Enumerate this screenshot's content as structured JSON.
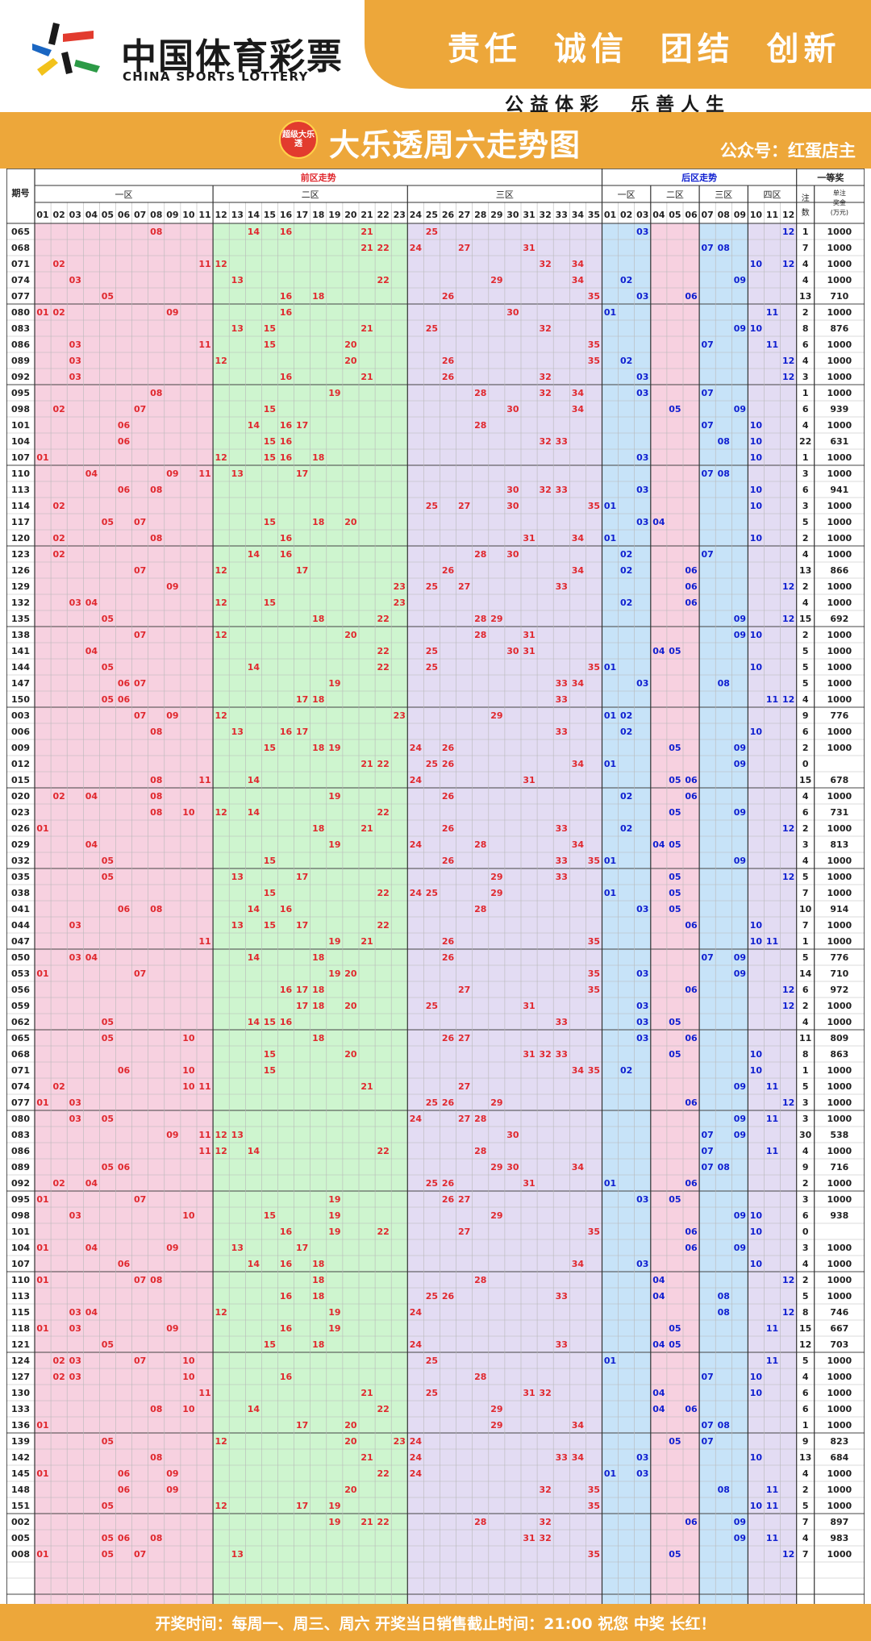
{
  "brand": {
    "name_cn": "中国体育彩票",
    "name_en": "CHINA SPORTS LOTTERY",
    "slogan": "责任  诚信  团结  创新",
    "tagline": "公益体彩  乐善人生"
  },
  "title": {
    "badge": "超级大乐透",
    "text": "大乐透周六走势图",
    "subtitle": "公众号：红蛋店主"
  },
  "header": {
    "period_label": "期号",
    "front_label": "前区走势",
    "back_label": "后区走势",
    "prize_label": "一等奖",
    "front_zones": [
      "一区",
      "二区",
      "三区"
    ],
    "back_zones": [
      "一区",
      "二区",
      "三区",
      "四区"
    ],
    "count_label": "注数",
    "amount_label": "单注奖金(万元)"
  },
  "footer": "开奖时间：每周一、周三、周六  开奖当日销售截止时间：21:00  祝您 中奖 长红！",
  "colors": {
    "front_zone1": "#f7d1e0",
    "front_zone2": "#cef5cf",
    "front_zone3": "#e3dcf3",
    "back_zone1": "#c7e3f8",
    "back_zone2": "#f7d1e0",
    "back_zone3": "#c7e3f8",
    "back_zone4": "#e3dcf3",
    "front_number": "#e0282e",
    "back_number": "#1020d0",
    "orange": "#eda73a"
  },
  "draws": [
    {
      "p": "065",
      "f": [
        8,
        14,
        16,
        21,
        25
      ],
      "b": [
        3,
        12
      ],
      "n": "1",
      "a": "1000"
    },
    {
      "p": "068",
      "f": [
        21,
        22,
        24,
        27,
        31
      ],
      "b": [
        7,
        8
      ],
      "n": "7",
      "a": "1000"
    },
    {
      "p": "071",
      "f": [
        2,
        11,
        12,
        32,
        34
      ],
      "b": [
        10,
        12
      ],
      "n": "4",
      "a": "1000"
    },
    {
      "p": "074",
      "f": [
        3,
        13,
        22,
        29,
        34
      ],
      "b": [
        2,
        9
      ],
      "n": "4",
      "a": "1000"
    },
    {
      "p": "077",
      "f": [
        5,
        16,
        18,
        26,
        35
      ],
      "b": [
        3,
        6
      ],
      "n": "13",
      "a": "710"
    },
    {
      "p": "080",
      "f": [
        1,
        2,
        9,
        16,
        30
      ],
      "b": [
        1,
        11
      ],
      "n": "2",
      "a": "1000"
    },
    {
      "p": "083",
      "f": [
        13,
        15,
        21,
        25,
        32
      ],
      "b": [
        9,
        10
      ],
      "n": "8",
      "a": "876"
    },
    {
      "p": "086",
      "f": [
        3,
        11,
        15,
        20,
        35
      ],
      "b": [
        7,
        11
      ],
      "n": "6",
      "a": "1000"
    },
    {
      "p": "089",
      "f": [
        3,
        12,
        20,
        26,
        35
      ],
      "b": [
        2,
        12
      ],
      "n": "4",
      "a": "1000"
    },
    {
      "p": "092",
      "f": [
        3,
        16,
        21,
        26,
        32
      ],
      "b": [
        3,
        12
      ],
      "n": "3",
      "a": "1000"
    },
    {
      "p": "095",
      "f": [
        8,
        19,
        28,
        32,
        34
      ],
      "b": [
        3,
        7
      ],
      "n": "1",
      "a": "1000"
    },
    {
      "p": "098",
      "f": [
        2,
        7,
        15,
        30,
        34
      ],
      "b": [
        5,
        9
      ],
      "n": "6",
      "a": "939"
    },
    {
      "p": "101",
      "f": [
        6,
        14,
        16,
        17,
        28
      ],
      "b": [
        7,
        10
      ],
      "n": "4",
      "a": "1000"
    },
    {
      "p": "104",
      "f": [
        6,
        15,
        16,
        32,
        33
      ],
      "b": [
        8,
        10
      ],
      "n": "22",
      "a": "631"
    },
    {
      "p": "107",
      "f": [
        1,
        12,
        15,
        16,
        18
      ],
      "b": [
        3,
        10
      ],
      "n": "1",
      "a": "1000"
    },
    {
      "p": "110",
      "f": [
        4,
        9,
        11,
        13,
        17
      ],
      "b": [
        7,
        8
      ],
      "n": "3",
      "a": "1000"
    },
    {
      "p": "113",
      "f": [
        6,
        8,
        30,
        32,
        33
      ],
      "b": [
        3,
        10
      ],
      "n": "6",
      "a": "941"
    },
    {
      "p": "114",
      "f": [
        2,
        25,
        27,
        30,
        35
      ],
      "b": [
        1,
        10
      ],
      "n": "3",
      "a": "1000"
    },
    {
      "p": "117",
      "f": [
        5,
        7,
        15,
        18,
        20
      ],
      "b": [
        3,
        4
      ],
      "n": "5",
      "a": "1000"
    },
    {
      "p": "120",
      "f": [
        2,
        8,
        16,
        31,
        34
      ],
      "b": [
        1,
        10
      ],
      "n": "2",
      "a": "1000"
    },
    {
      "p": "123",
      "f": [
        2,
        14,
        16,
        28,
        30
      ],
      "b": [
        2,
        7
      ],
      "n": "4",
      "a": "1000"
    },
    {
      "p": "126",
      "f": [
        7,
        12,
        17,
        26,
        34
      ],
      "b": [
        2,
        6
      ],
      "n": "13",
      "a": "866"
    },
    {
      "p": "129",
      "f": [
        9,
        23,
        25,
        27,
        33
      ],
      "b": [
        6,
        12
      ],
      "n": "2",
      "a": "1000"
    },
    {
      "p": "132",
      "f": [
        3,
        4,
        12,
        15,
        23
      ],
      "b": [
        2,
        6
      ],
      "n": "4",
      "a": "1000"
    },
    {
      "p": "135",
      "f": [
        5,
        18,
        22,
        28,
        29
      ],
      "b": [
        9,
        12
      ],
      "n": "15",
      "a": "692"
    },
    {
      "p": "138",
      "f": [
        7,
        12,
        20,
        28,
        31
      ],
      "b": [
        9,
        10
      ],
      "n": "2",
      "a": "1000"
    },
    {
      "p": "141",
      "f": [
        4,
        22,
        25,
        30,
        31
      ],
      "b": [
        4,
        5
      ],
      "n": "5",
      "a": "1000"
    },
    {
      "p": "144",
      "f": [
        5,
        14,
        22,
        25,
        35
      ],
      "b": [
        1,
        10
      ],
      "n": "5",
      "a": "1000"
    },
    {
      "p": "147",
      "f": [
        6,
        7,
        19,
        33,
        34
      ],
      "b": [
        3,
        8
      ],
      "n": "5",
      "a": "1000"
    },
    {
      "p": "150",
      "f": [
        5,
        6,
        17,
        18,
        33
      ],
      "b": [
        11,
        12
      ],
      "n": "4",
      "a": "1000"
    },
    {
      "p": "003",
      "f": [
        7,
        9,
        12,
        23,
        29
      ],
      "b": [
        1,
        2
      ],
      "n": "9",
      "a": "776"
    },
    {
      "p": "006",
      "f": [
        8,
        13,
        16,
        17,
        33
      ],
      "b": [
        2,
        10
      ],
      "n": "6",
      "a": "1000"
    },
    {
      "p": "009",
      "f": [
        15,
        18,
        19,
        24,
        26
      ],
      "b": [
        5,
        9
      ],
      "n": "2",
      "a": "1000"
    },
    {
      "p": "012",
      "f": [
        21,
        22,
        25,
        26,
        34
      ],
      "b": [
        1,
        9
      ],
      "n": "0",
      "a": ""
    },
    {
      "p": "015",
      "f": [
        8,
        11,
        14,
        24,
        31
      ],
      "b": [
        5,
        6
      ],
      "n": "15",
      "a": "678"
    },
    {
      "p": "020",
      "f": [
        2,
        4,
        8,
        19,
        26
      ],
      "b": [
        2,
        6
      ],
      "n": "4",
      "a": "1000"
    },
    {
      "p": "023",
      "f": [
        8,
        10,
        12,
        14,
        22
      ],
      "b": [
        5,
        9
      ],
      "n": "6",
      "a": "731"
    },
    {
      "p": "026",
      "f": [
        1,
        18,
        21,
        26,
        33
      ],
      "b": [
        2,
        12
      ],
      "n": "2",
      "a": "1000"
    },
    {
      "p": "029",
      "f": [
        4,
        19,
        24,
        28,
        34
      ],
      "b": [
        4,
        5
      ],
      "n": "3",
      "a": "813"
    },
    {
      "p": "032",
      "f": [
        5,
        15,
        26,
        33,
        35
      ],
      "b": [
        1,
        9
      ],
      "n": "4",
      "a": "1000"
    },
    {
      "p": "035",
      "f": [
        5,
        13,
        17,
        29,
        33
      ],
      "b": [
        5,
        12
      ],
      "n": "5",
      "a": "1000"
    },
    {
      "p": "038",
      "f": [
        15,
        22,
        24,
        25,
        29
      ],
      "b": [
        1,
        5
      ],
      "n": "7",
      "a": "1000"
    },
    {
      "p": "041",
      "f": [
        6,
        8,
        14,
        16,
        28
      ],
      "b": [
        3,
        5
      ],
      "n": "10",
      "a": "914"
    },
    {
      "p": "044",
      "f": [
        3,
        13,
        15,
        17,
        22
      ],
      "b": [
        6,
        10
      ],
      "n": "7",
      "a": "1000"
    },
    {
      "p": "047",
      "f": [
        11,
        19,
        21,
        26,
        35
      ],
      "b": [
        10,
        11
      ],
      "n": "1",
      "a": "1000"
    },
    {
      "p": "050",
      "f": [
        3,
        4,
        14,
        18,
        26
      ],
      "b": [
        7,
        9
      ],
      "n": "5",
      "a": "776"
    },
    {
      "p": "053",
      "f": [
        1,
        7,
        19,
        20,
        35
      ],
      "b": [
        3,
        9
      ],
      "n": "14",
      "a": "710"
    },
    {
      "p": "056",
      "f": [
        16,
        17,
        18,
        27,
        35
      ],
      "b": [
        6,
        12
      ],
      "n": "6",
      "a": "972"
    },
    {
      "p": "059",
      "f": [
        17,
        18,
        20,
        25,
        31
      ],
      "b": [
        3,
        12
      ],
      "n": "2",
      "a": "1000"
    },
    {
      "p": "062",
      "f": [
        5,
        14,
        15,
        16,
        33
      ],
      "b": [
        3,
        5
      ],
      "n": "4",
      "a": "1000"
    },
    {
      "p": "065",
      "f": [
        5,
        10,
        18,
        26,
        27
      ],
      "b": [
        3,
        6
      ],
      "n": "11",
      "a": "809"
    },
    {
      "p": "068",
      "f": [
        15,
        20,
        31,
        32,
        33
      ],
      "b": [
        5,
        10
      ],
      "n": "8",
      "a": "863"
    },
    {
      "p": "071",
      "f": [
        6,
        10,
        15,
        34,
        35
      ],
      "b": [
        2,
        10
      ],
      "n": "1",
      "a": "1000"
    },
    {
      "p": "074",
      "f": [
        2,
        10,
        11,
        21,
        27
      ],
      "b": [
        9,
        11
      ],
      "n": "5",
      "a": "1000"
    },
    {
      "p": "077",
      "f": [
        1,
        3,
        25,
        26,
        29
      ],
      "b": [
        6,
        12
      ],
      "n": "3",
      "a": "1000"
    },
    {
      "p": "080",
      "f": [
        3,
        5,
        24,
        27,
        28
      ],
      "b": [
        9,
        11
      ],
      "n": "3",
      "a": "1000"
    },
    {
      "p": "083",
      "f": [
        9,
        11,
        12,
        13,
        30
      ],
      "b": [
        7,
        9
      ],
      "n": "30",
      "a": "538"
    },
    {
      "p": "086",
      "f": [
        11,
        12,
        14,
        22,
        28
      ],
      "b": [
        7,
        11
      ],
      "n": "4",
      "a": "1000"
    },
    {
      "p": "089",
      "f": [
        5,
        6,
        29,
        30,
        34
      ],
      "b": [
        7,
        8
      ],
      "n": "9",
      "a": "716"
    },
    {
      "p": "092",
      "f": [
        2,
        4,
        25,
        26,
        31
      ],
      "b": [
        1,
        6
      ],
      "n": "2",
      "a": "1000"
    },
    {
      "p": "095",
      "f": [
        1,
        7,
        19,
        26,
        27
      ],
      "b": [
        3,
        5
      ],
      "n": "3",
      "a": "1000"
    },
    {
      "p": "098",
      "f": [
        3,
        10,
        15,
        19,
        29
      ],
      "b": [
        9,
        10
      ],
      "n": "6",
      "a": "938"
    },
    {
      "p": "101",
      "f": [
        16,
        19,
        22,
        27,
        35
      ],
      "b": [
        6,
        10
      ],
      "n": "0",
      "a": ""
    },
    {
      "p": "104",
      "f": [
        1,
        4,
        9,
        13,
        17
      ],
      "b": [
        6,
        9
      ],
      "n": "3",
      "a": "1000"
    },
    {
      "p": "107",
      "f": [
        6,
        14,
        16,
        18,
        34
      ],
      "b": [
        3,
        10
      ],
      "n": "4",
      "a": "1000"
    },
    {
      "p": "110",
      "f": [
        1,
        7,
        8,
        18,
        28
      ],
      "b": [
        4,
        12
      ],
      "n": "2",
      "a": "1000"
    },
    {
      "p": "113",
      "f": [
        16,
        18,
        25,
        26,
        33
      ],
      "b": [
        4,
        8
      ],
      "n": "5",
      "a": "1000"
    },
    {
      "p": "115",
      "f": [
        3,
        4,
        12,
        19,
        24
      ],
      "b": [
        8,
        12
      ],
      "n": "8",
      "a": "746"
    },
    {
      "p": "118",
      "f": [
        1,
        3,
        9,
        16,
        19
      ],
      "b": [
        5,
        11
      ],
      "n": "15",
      "a": "667"
    },
    {
      "p": "121",
      "f": [
        5,
        15,
        18,
        24,
        33
      ],
      "b": [
        4,
        5
      ],
      "n": "12",
      "a": "703"
    },
    {
      "p": "124",
      "f": [
        2,
        3,
        7,
        10,
        25
      ],
      "b": [
        1,
        11
      ],
      "n": "5",
      "a": "1000"
    },
    {
      "p": "127",
      "f": [
        2,
        3,
        10,
        16,
        28
      ],
      "b": [
        7,
        10
      ],
      "n": "4",
      "a": "1000"
    },
    {
      "p": "130",
      "f": [
        11,
        21,
        25,
        31,
        32
      ],
      "b": [
        4,
        10
      ],
      "n": "6",
      "a": "1000"
    },
    {
      "p": "133",
      "f": [
        8,
        10,
        14,
        22,
        29
      ],
      "b": [
        4,
        6
      ],
      "n": "6",
      "a": "1000"
    },
    {
      "p": "136",
      "f": [
        1,
        17,
        20,
        29,
        34
      ],
      "b": [
        7,
        8
      ],
      "n": "1",
      "a": "1000"
    },
    {
      "p": "139",
      "f": [
        5,
        12,
        20,
        23,
        24
      ],
      "b": [
        5,
        7
      ],
      "n": "9",
      "a": "823"
    },
    {
      "p": "142",
      "f": [
        8,
        21,
        24,
        33,
        34
      ],
      "b": [
        3,
        10
      ],
      "n": "13",
      "a": "684"
    },
    {
      "p": "145",
      "f": [
        1,
        6,
        9,
        22,
        24
      ],
      "b": [
        1,
        3
      ],
      "n": "4",
      "a": "1000"
    },
    {
      "p": "148",
      "f": [
        6,
        9,
        20,
        32,
        35
      ],
      "b": [
        8,
        11
      ],
      "n": "2",
      "a": "1000"
    },
    {
      "p": "151",
      "f": [
        5,
        12,
        17,
        19,
        35
      ],
      "b": [
        10,
        11
      ],
      "n": "5",
      "a": "1000"
    },
    {
      "p": "002",
      "f": [
        19,
        21,
        22,
        28,
        32
      ],
      "b": [
        6,
        9
      ],
      "n": "7",
      "a": "897"
    },
    {
      "p": "005",
      "f": [
        5,
        6,
        8,
        31,
        32
      ],
      "b": [
        9,
        11
      ],
      "n": "4",
      "a": "983"
    },
    {
      "p": "008",
      "f": [
        1,
        5,
        7,
        13,
        35
      ],
      "b": [
        5,
        12
      ],
      "n": "7",
      "a": "1000"
    }
  ]
}
